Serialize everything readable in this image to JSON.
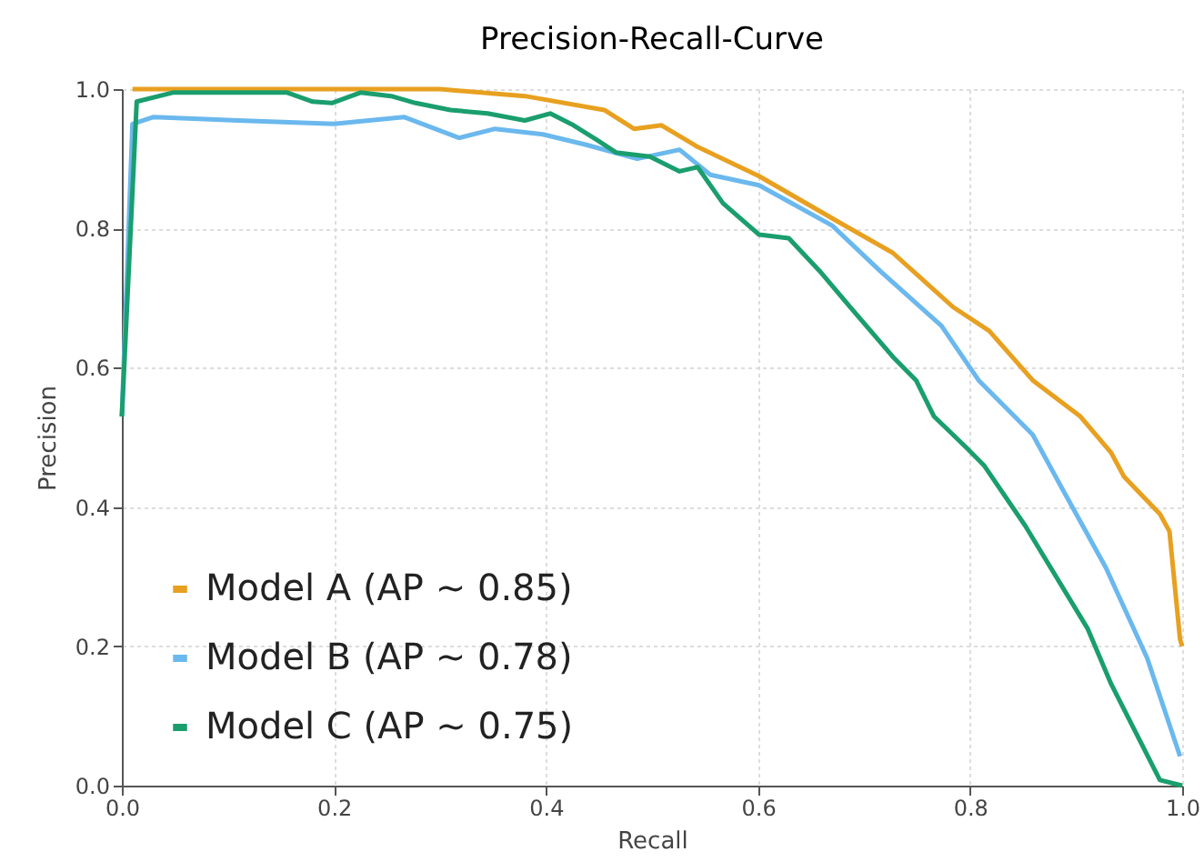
{
  "chart_data": {
    "type": "line",
    "title": "Precision-Recall-Curve",
    "xlabel": "Recall",
    "ylabel": "Precision",
    "xlim": [
      0,
      1
    ],
    "ylim": [
      0,
      1
    ],
    "xticks": [
      {
        "value": 0,
        "label": "0.0"
      },
      {
        "value": 0.2,
        "label": "0.2"
      },
      {
        "value": 0.4,
        "label": "0.4"
      },
      {
        "value": 0.6,
        "label": "0.6"
      },
      {
        "value": 0.8,
        "label": "0.8"
      },
      {
        "value": 1,
        "label": "1.0"
      }
    ],
    "yticks": [
      {
        "value": 0,
        "label": "0.0"
      },
      {
        "value": 0.2,
        "label": "0.2"
      },
      {
        "value": 0.4,
        "label": "0.4"
      },
      {
        "value": 0.6,
        "label": "0.6"
      },
      {
        "value": 0.8,
        "label": "0.8"
      },
      {
        "value": 1,
        "label": "1.0"
      }
    ],
    "grid": true,
    "legend": "bottom left",
    "line_style": "solid",
    "marker": "none",
    "series": [
      {
        "name": "Model A (AP ~ 0.85)",
        "color": "#e8a020",
        "x": [
          0.01,
          0.1,
          0.2,
          0.3,
          0.38,
          0.455,
          0.483,
          0.509,
          0.543,
          0.601,
          0.675,
          0.727,
          0.784,
          0.818,
          0.859,
          0.904,
          0.933,
          0.945,
          0.979,
          0.988,
          0.998,
          1
        ],
        "values": [
          1,
          1,
          1,
          1,
          0.99,
          0.97,
          0.943,
          0.948,
          0.917,
          0.875,
          0.81,
          0.765,
          0.687,
          0.653,
          0.582,
          0.53,
          0.478,
          0.444,
          0.39,
          0.365,
          0.21,
          0.2
        ]
      },
      {
        "name": "Model B (AP ~ 0.78)",
        "color": "#6ab8ee",
        "x": [
          0,
          0.01,
          0.03,
          0.11,
          0.2,
          0.266,
          0.318,
          0.352,
          0.397,
          0.438,
          0.486,
          0.526,
          0.555,
          0.601,
          0.67,
          0.715,
          0.773,
          0.808,
          0.859,
          0.887,
          0.928,
          0.967,
          0.998
        ],
        "values": [
          0.53,
          0.95,
          0.96,
          0.955,
          0.95,
          0.96,
          0.93,
          0.943,
          0.935,
          0.92,
          0.9,
          0.913,
          0.877,
          0.862,
          0.804,
          0.739,
          0.66,
          0.582,
          0.504,
          0.426,
          0.313,
          0.183,
          0.042
        ]
      },
      {
        "name": "Model C (AP ~ 0.75)",
        "color": "#1a9e6e",
        "x": [
          0,
          0.014,
          0.048,
          0.156,
          0.18,
          0.198,
          0.225,
          0.254,
          0.277,
          0.31,
          0.345,
          0.38,
          0.404,
          0.426,
          0.448,
          0.466,
          0.498,
          0.526,
          0.543,
          0.567,
          0.601,
          0.629,
          0.658,
          0.687,
          0.727,
          0.749,
          0.766,
          0.796,
          0.813,
          0.852,
          0.911,
          0.933,
          0.979,
          1
        ],
        "values": [
          0.53,
          0.982,
          0.995,
          0.995,
          0.982,
          0.98,
          0.995,
          0.99,
          0.98,
          0.97,
          0.965,
          0.955,
          0.965,
          0.948,
          0.927,
          0.909,
          0.903,
          0.882,
          0.888,
          0.836,
          0.791,
          0.786,
          0.739,
          0.687,
          0.616,
          0.582,
          0.53,
          0.486,
          0.46,
          0.373,
          0.225,
          0.146,
          0.008,
          0
        ]
      }
    ]
  }
}
